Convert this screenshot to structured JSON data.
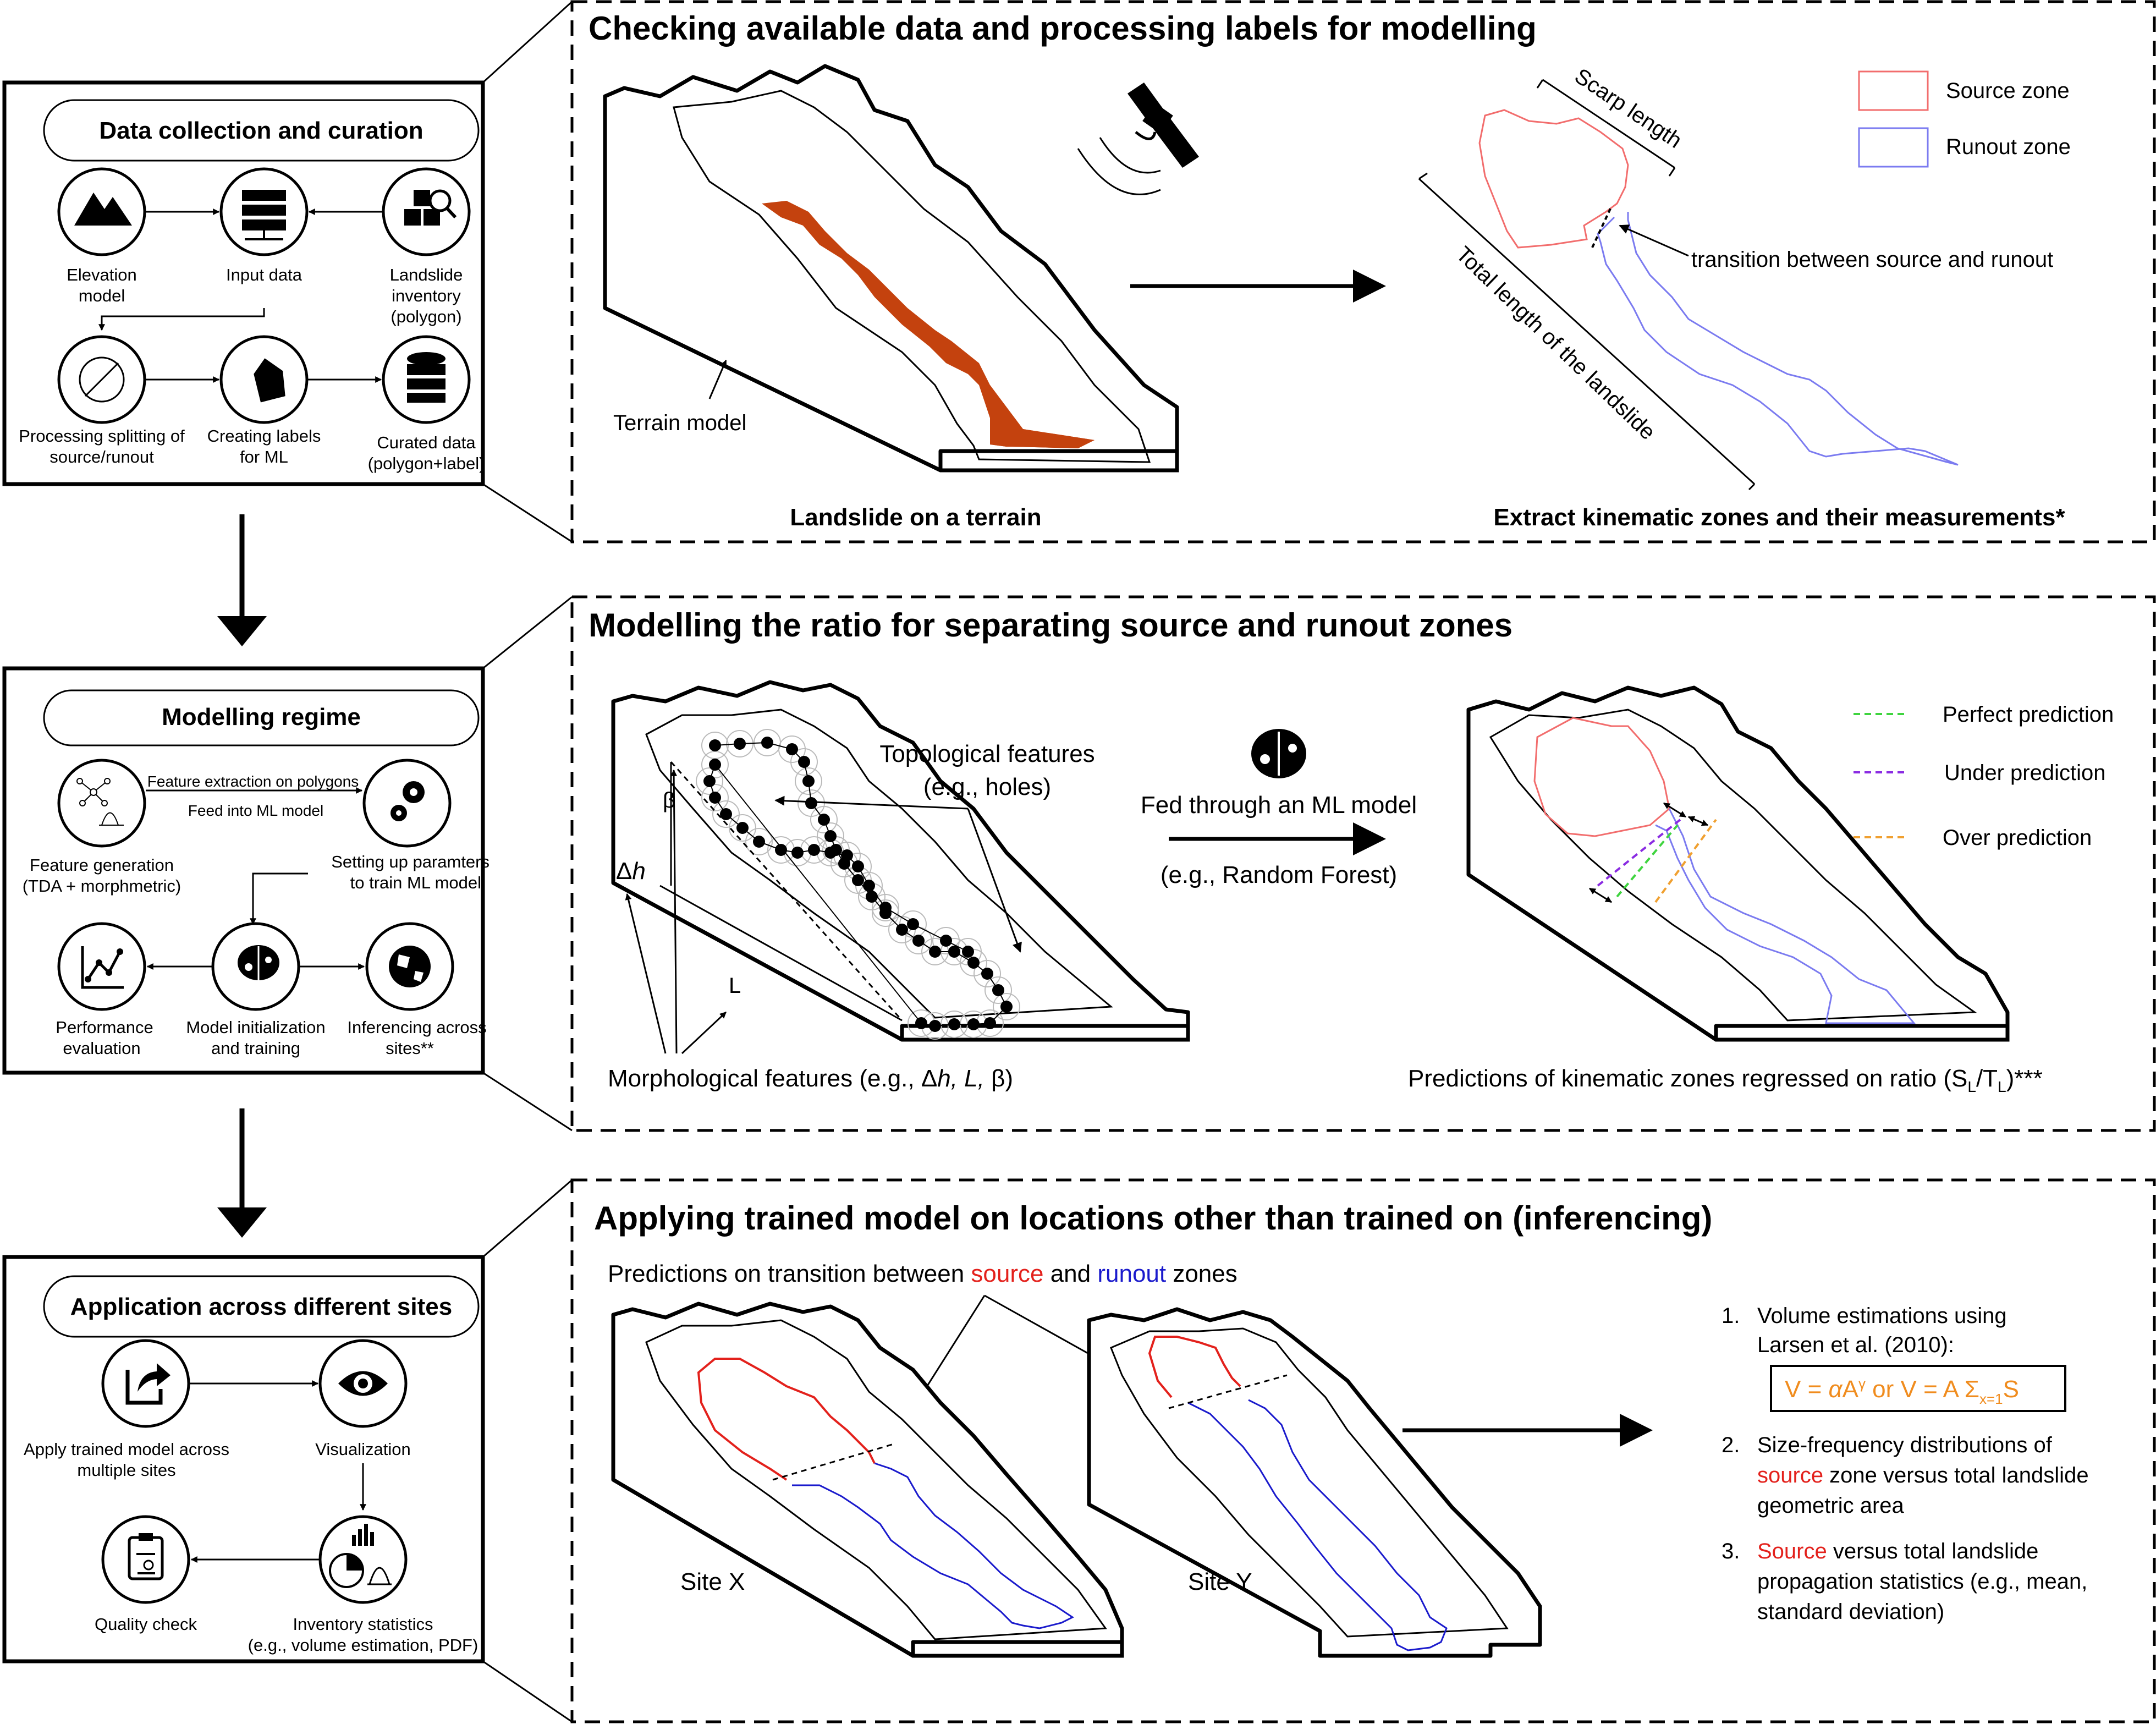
{
  "left_panels": {
    "data": {
      "title": "Data collection and curation",
      "nodes": {
        "elevation": [
          "Elevation",
          "model"
        ],
        "input": [
          "Input data"
        ],
        "inventory": [
          "Landslide",
          "inventory",
          "(polygon)"
        ],
        "splitting": [
          "Processing splitting of",
          "source/runout"
        ],
        "labels": [
          "Creating labels",
          "for ML"
        ],
        "curated": [
          "Curated data",
          "(polygon+label)"
        ]
      }
    },
    "modelling": {
      "title": "Modelling regime",
      "arrow_top": "Feature extraction on polygons",
      "arrow_bottom": "Feed into ML model",
      "setup": [
        "Setting up paramters",
        "to train ML model"
      ],
      "nodes": {
        "feature": [
          "Feature generation",
          "(TDA + morphmetric)"
        ],
        "performance": [
          "Performance",
          "evaluation"
        ],
        "init": [
          "Model initialization",
          "and training"
        ],
        "infer": [
          "Inferencing across",
          "sites**"
        ]
      }
    },
    "application": {
      "title": "Application across different sites",
      "nodes": {
        "apply": [
          "Apply trained model across",
          "multiple sites"
        ],
        "vis": [
          "Visualization"
        ],
        "quality": [
          "Quality check"
        ],
        "stats": [
          "Inventory statistics",
          "(e.g., volume estimation, PDF)"
        ]
      }
    }
  },
  "panel1": {
    "title": "Checking available data and processing labels for modelling",
    "terrain_label": "Terrain model",
    "caption_left": "Landslide on a terrain",
    "caption_right": "Extract kinematic zones and their measurements*",
    "scarp_length": "Scarp length",
    "total_length": "Total length of the landslide",
    "transition": "transition between source and runout",
    "legend": [
      {
        "label": "Source zone",
        "color": "#f26d6d"
      },
      {
        "label": "Runout zone",
        "color": "#7b7bf0"
      }
    ],
    "landslide_color": "#c4420e"
  },
  "panel2": {
    "title": "Modelling the ratio for separating source and runout zones",
    "topo": [
      "Topological features",
      "(e.g., holes)"
    ],
    "ml_model": "Fed through an ML model",
    "ml_example": "(e.g., Random Forest)",
    "morph": "Morphological features (e.g., Δ",
    "morph_h": "h",
    "morph_rest": ", L,",
    "morph_beta": " β)",
    "dh": "Δ",
    "dh_h": "h",
    "beta": "β",
    "L": "L",
    "prediction_caption": "Predictions of kinematic zones regressed on ratio (S",
    "pred_sub1": "L",
    "pred_mid": "/T",
    "pred_sub2": "L",
    "pred_end": ")***",
    "legend": [
      {
        "label": "Perfect prediction",
        "color": "#3fd43f"
      },
      {
        "label": "Under prediction",
        "color": "#8a2be2"
      },
      {
        "label": "Over prediction",
        "color": "#f0a030"
      }
    ]
  },
  "panel3": {
    "title": "Applying trained model on locations other than trained on (inferencing)",
    "pred_prefix": "Predictions on transition between ",
    "pred_source": "source",
    "pred_and": " and ",
    "pred_runout": "runout",
    "pred_suffix": " zones",
    "site_x": "Site X",
    "site_y": "Site Y",
    "list": {
      "n1": "1.",
      "l1a": "Volume estimations using",
      "l1b": "Larsen et al. (2010):",
      "formula_a": "V = ",
      "formula_alpha": "α",
      "formula_b": "A",
      "formula_gamma": "γ",
      "formula_c": " or  V = A Σ",
      "formula_sub": "x=1",
      "formula_d": "S",
      "n2": "2.",
      "l2a": "Size-frequency distributions of",
      "l2b_src": "source",
      "l2b_rest": " zone versus total landslide",
      "l2c": "geometric area",
      "n3": "3.",
      "l3a_src": "Source",
      "l3a_rest": " versus total landslide",
      "l3b": "propagation statistics (e.g., mean,",
      "l3c": "standard deviation)"
    },
    "source_color": "#e3211c",
    "runout_color": "#1a1acc",
    "formula_color": "#f08c1e"
  }
}
